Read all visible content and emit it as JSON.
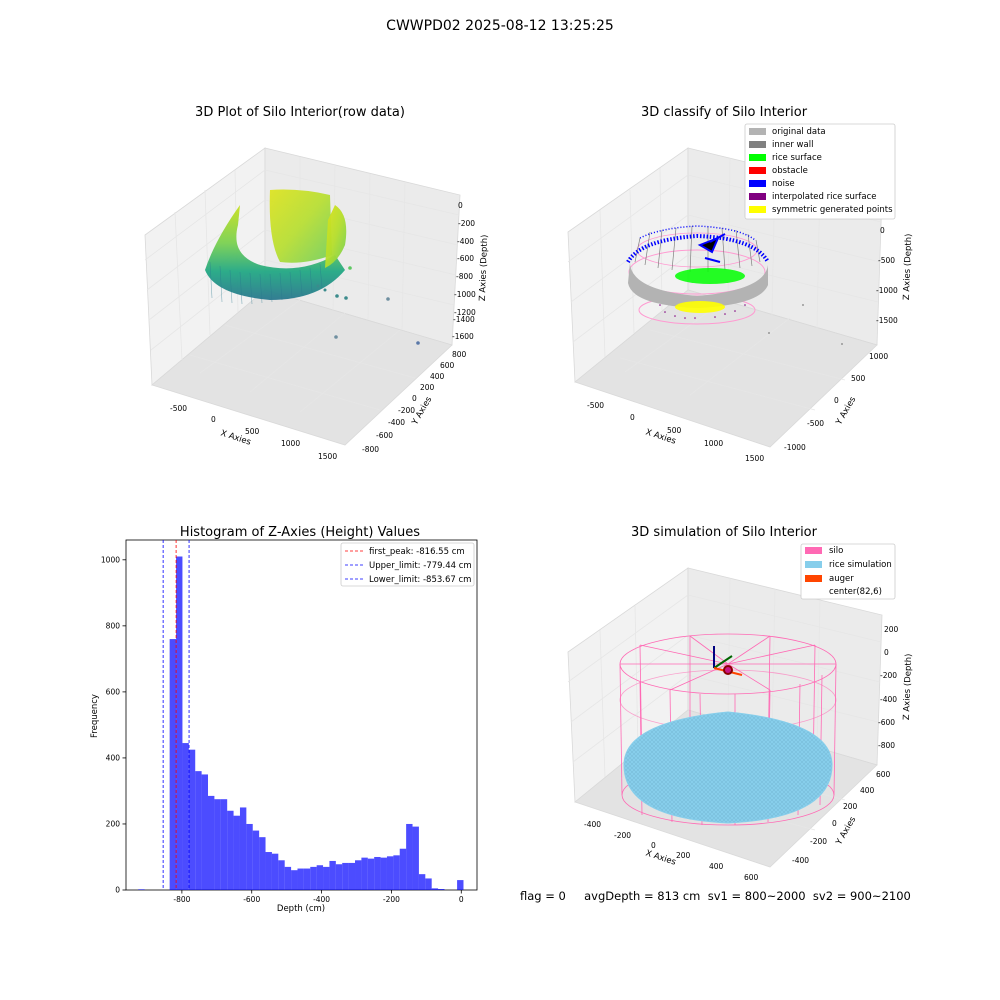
{
  "suptitle": "CWWPD02 2025-08-12 13:25:25",
  "footer": "flag = 0     avgDepth = 813 cm  sv1 = 800~2000  sv2 = 900~2100",
  "chart_data": [
    {
      "type": "scatter",
      "subtype": "3d",
      "title": "3D Plot of Silo Interior(row data)",
      "xlabel": "X Axies",
      "ylabel": "Y Axies",
      "zlabel": "Z Axies (Depth)",
      "x_ticks": [
        "-500",
        "0",
        "500",
        "1000",
        "1500"
      ],
      "y_ticks": [
        "-800",
        "-600",
        "-400",
        "-200",
        "0",
        "200",
        "400",
        "600",
        "800"
      ],
      "z_ticks": [
        "0",
        "-200",
        "-400",
        "-600",
        "-800",
        "-1000",
        "-1200",
        "-1400",
        "-1600"
      ],
      "colormap": "viridis"
    },
    {
      "type": "scatter",
      "subtype": "3d",
      "title": "3D classify of Silo Interior",
      "xlabel": "X Axies",
      "ylabel": "Y Axies",
      "zlabel": "Z Axies (Depth)",
      "x_ticks": [
        "-500",
        "0",
        "500",
        "1000",
        "1500"
      ],
      "y_ticks": [
        "-1000",
        "-500",
        "0",
        "500",
        "1000"
      ],
      "z_ticks": [
        "0",
        "-500",
        "-1000",
        "-1500"
      ],
      "legend": [
        {
          "label": "original data",
          "color": "#b3b3b3"
        },
        {
          "label": "inner wall",
          "color": "#808080"
        },
        {
          "label": "rice surface",
          "color": "#00ff00"
        },
        {
          "label": "obstacle",
          "color": "#ff0000"
        },
        {
          "label": "noise",
          "color": "#0000ff"
        },
        {
          "label": "interpolated rice surface",
          "color": "#800080"
        },
        {
          "label": "symmetric generated points",
          "color": "#ffff00"
        }
      ],
      "legend_position": "top-right"
    },
    {
      "type": "bar",
      "subtype": "histogram",
      "title": "Histogram of Z-Axies (Height) Values",
      "xlabel": "Depth (cm)",
      "ylabel": "Frequency",
      "xlim": [
        -960,
        45
      ],
      "ylim": [
        0,
        1060
      ],
      "x_ticks": [
        -800,
        -600,
        -400,
        -200,
        0
      ],
      "y_ticks": [
        0,
        200,
        400,
        600,
        800,
        1000
      ],
      "bar_color": "#0000ff",
      "bin_width": 18.3,
      "bins": [
        {
          "x0": -925,
          "count": 2
        },
        {
          "x0": -835,
          "count": 760
        },
        {
          "x0": -816.7,
          "count": 1010
        },
        {
          "x0": -798.4,
          "count": 445
        },
        {
          "x0": -780.1,
          "count": 425
        },
        {
          "x0": -761.8,
          "count": 360
        },
        {
          "x0": -743.5,
          "count": 350
        },
        {
          "x0": -725.2,
          "count": 285
        },
        {
          "x0": -706.9,
          "count": 275
        },
        {
          "x0": -688.6,
          "count": 275
        },
        {
          "x0": -670.3,
          "count": 240
        },
        {
          "x0": -652.0,
          "count": 225
        },
        {
          "x0": -633.7,
          "count": 250
        },
        {
          "x0": -615.4,
          "count": 200
        },
        {
          "x0": -597.1,
          "count": 180
        },
        {
          "x0": -578.8,
          "count": 160
        },
        {
          "x0": -560.5,
          "count": 115
        },
        {
          "x0": -542.2,
          "count": 110
        },
        {
          "x0": -523.9,
          "count": 90
        },
        {
          "x0": -505.6,
          "count": 70
        },
        {
          "x0": -487.3,
          "count": 60
        },
        {
          "x0": -469.0,
          "count": 65
        },
        {
          "x0": -450.7,
          "count": 65
        },
        {
          "x0": -432.4,
          "count": 70
        },
        {
          "x0": -414.1,
          "count": 75
        },
        {
          "x0": -395.8,
          "count": 70
        },
        {
          "x0": -377.5,
          "count": 88
        },
        {
          "x0": -359.2,
          "count": 78
        },
        {
          "x0": -340.9,
          "count": 82
        },
        {
          "x0": -322.6,
          "count": 82
        },
        {
          "x0": -304.3,
          "count": 90
        },
        {
          "x0": -286.0,
          "count": 98
        },
        {
          "x0": -267.7,
          "count": 95
        },
        {
          "x0": -249.4,
          "count": 100
        },
        {
          "x0": -231.1,
          "count": 98
        },
        {
          "x0": -212.8,
          "count": 102
        },
        {
          "x0": -194.5,
          "count": 105
        },
        {
          "x0": -176.2,
          "count": 125
        },
        {
          "x0": -157.9,
          "count": 200
        },
        {
          "x0": -139.6,
          "count": 192
        },
        {
          "x0": -121.3,
          "count": 48
        },
        {
          "x0": -103.0,
          "count": 35
        },
        {
          "x0": -84.7,
          "count": 5
        },
        {
          "x0": -66.4,
          "count": 3
        },
        {
          "x0": -12,
          "count": 30
        }
      ],
      "vlines": [
        {
          "label": "first_peak: -816.55 cm",
          "x": -816.55,
          "color": "#ff0000"
        },
        {
          "label": "Upper_limit: -779.44 cm",
          "x": -779.44,
          "color": "#0000ff"
        },
        {
          "label": "Lower_limit: -853.67 cm",
          "x": -853.67,
          "color": "#0000ff"
        }
      ],
      "legend_position": "top-right"
    },
    {
      "type": "scatter",
      "subtype": "3d",
      "title": "3D simulation of Silo Interior",
      "xlabel": "X Axies",
      "ylabel": "Y Axies",
      "zlabel": "Z Axies (Depth)",
      "x_ticks": [
        "-400",
        "-200",
        "0",
        "200",
        "400",
        "600"
      ],
      "y_ticks": [
        "-400",
        "-200",
        "0",
        "200",
        "400",
        "600"
      ],
      "z_ticks": [
        "200",
        "0",
        "-200",
        "-400",
        "-600",
        "-800"
      ],
      "legend": [
        {
          "label": "silo",
          "color": "#ff69b4"
        },
        {
          "label": "rice simulation",
          "color": "#87ceeb"
        },
        {
          "label": "auger",
          "color": "#ff4500"
        },
        {
          "label": "center(82,6)",
          "color": "#ffffff"
        }
      ],
      "legend_position": "top-right"
    }
  ]
}
